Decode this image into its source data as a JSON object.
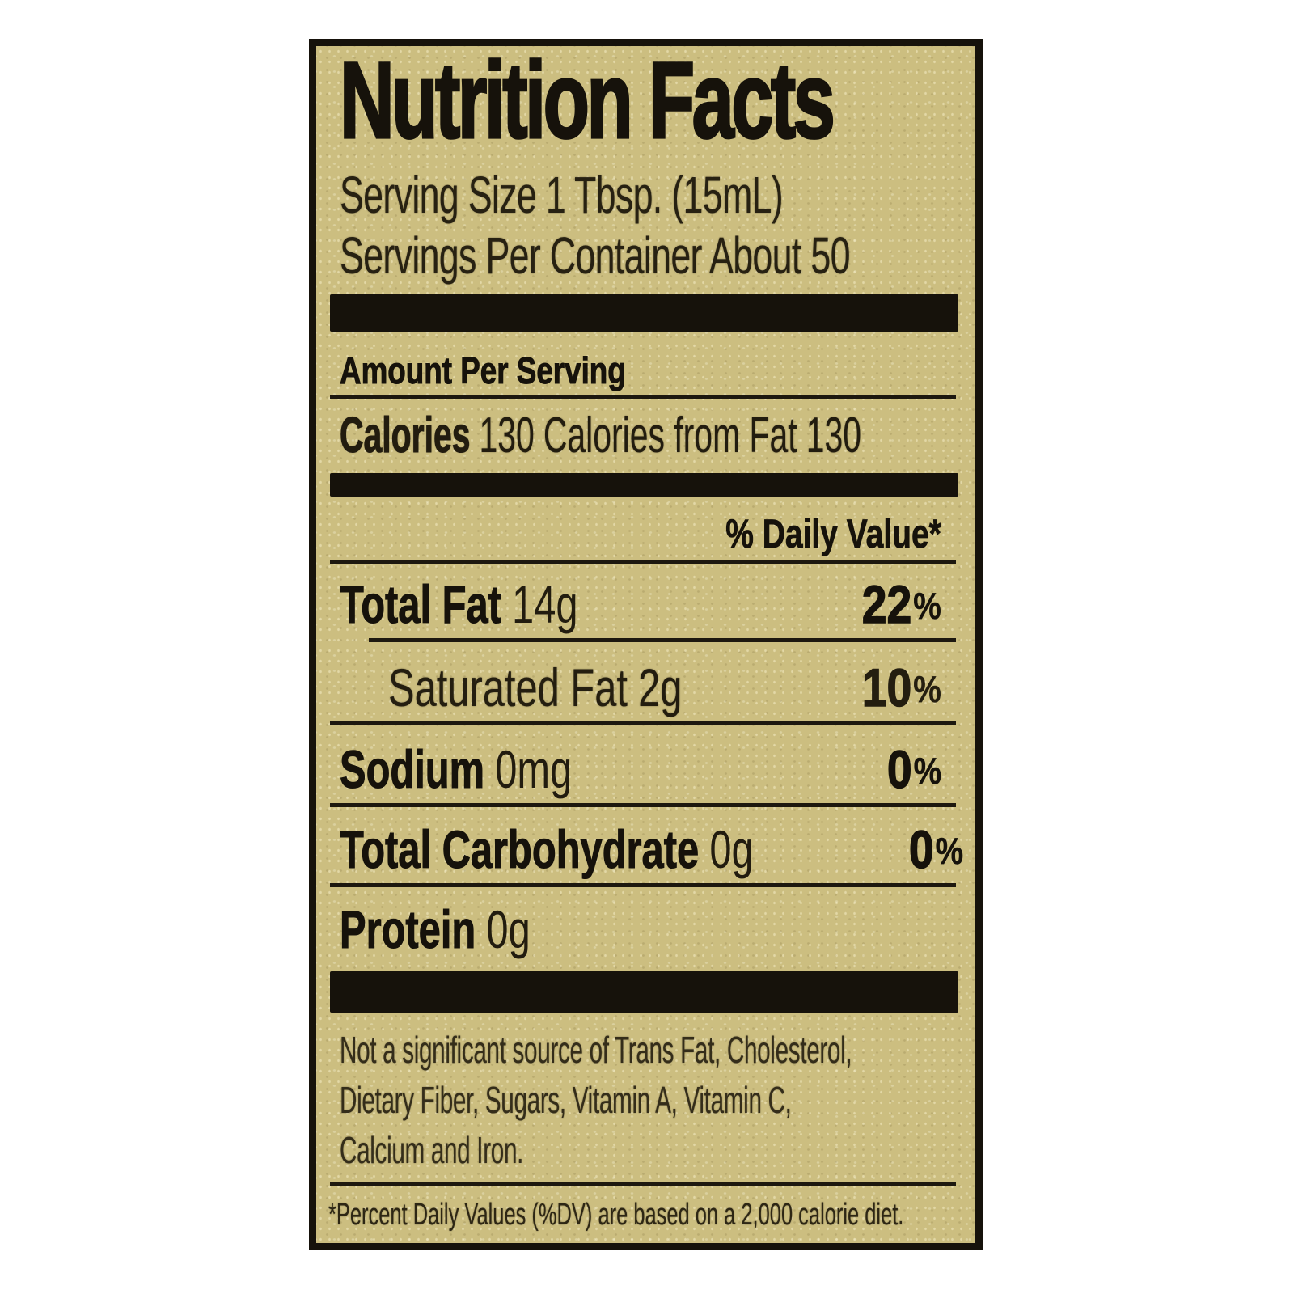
{
  "label": {
    "title": "Nutrition Facts",
    "serving_size": "Serving Size 1 Tbsp. (15mL)",
    "servings_per_container": "Servings Per Container About 50",
    "amount_per_serving": "Amount Per Serving",
    "calories": {
      "label": "Calories",
      "value": "130",
      "from_fat_label": "Calories from Fat",
      "from_fat_value": "130"
    },
    "daily_value_header": "% Daily Value*",
    "nutrients": [
      {
        "name": "Total Fat",
        "amount": "14g",
        "dv_num": "22",
        "dv_sign": "%"
      },
      {
        "name": "Saturated Fat",
        "amount": "2g",
        "dv_num": "10",
        "dv_sign": "%"
      },
      {
        "name": "Sodium",
        "amount": "0mg",
        "dv_num": "0",
        "dv_sign": "%"
      },
      {
        "name": "Total Carbohydrate",
        "amount": "0g",
        "dv_num": "0",
        "dv_sign": "%"
      },
      {
        "name": "Protein",
        "amount": "0g",
        "dv_num": "",
        "dv_sign": ""
      }
    ],
    "note_lines": [
      "Not a significant source of Trans Fat, Cholesterol,",
      "Dietary Fiber, Sugars, Vitamin A, Vitamin C,",
      "Calcium and Iron."
    ],
    "footnote": "*Percent Daily Values (%DV) are based on a 2,000 calorie diet.",
    "colors": {
      "label_background": "#ccbe80",
      "ink": "#16120b",
      "page_background": "#ffffff"
    }
  }
}
